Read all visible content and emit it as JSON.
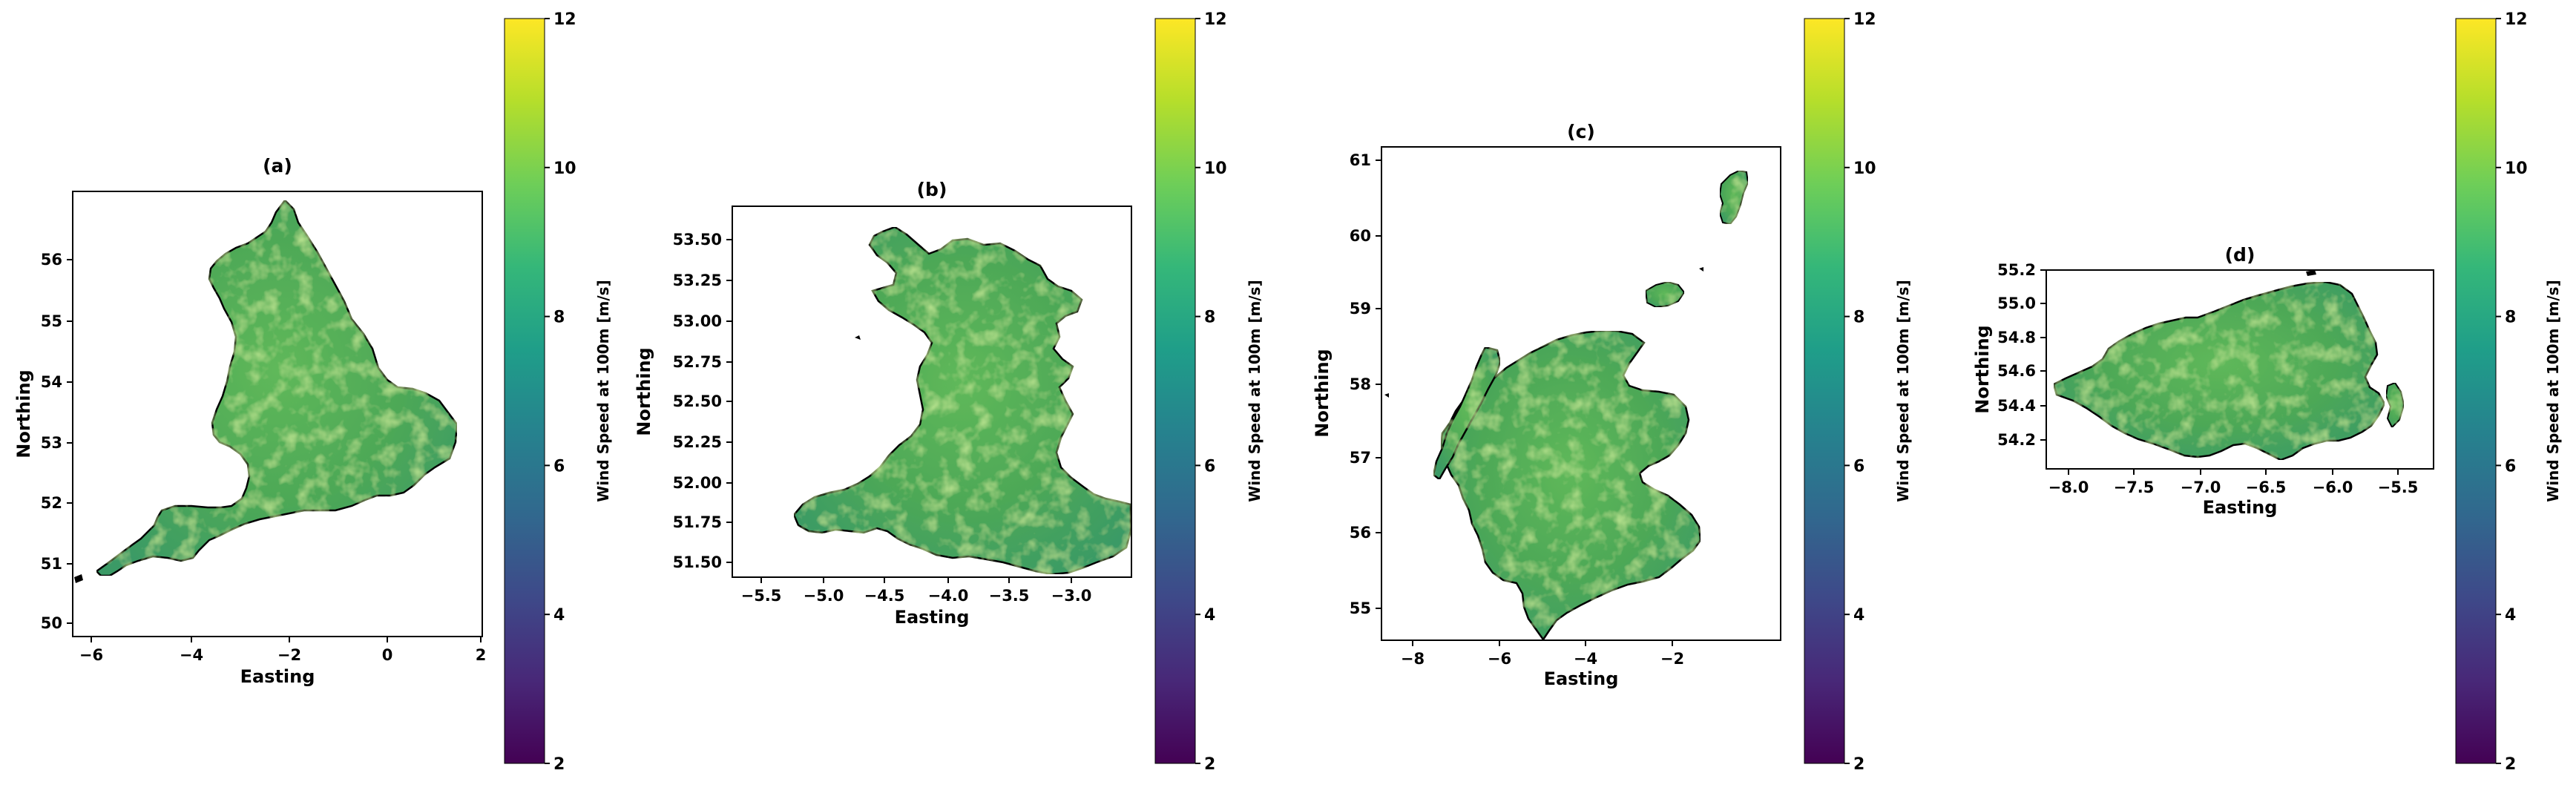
{
  "colormap": [
    "#440154",
    "#482878",
    "#3e4989",
    "#31688e",
    "#26828e",
    "#1f9e89",
    "#35b779",
    "#6ece58",
    "#b5de2b",
    "#fde725"
  ],
  "land_colors": {
    "base": "#4da857",
    "light": "#8ccf4f",
    "dark": "#2c8f73",
    "coast": "#000000"
  },
  "panels": [
    {
      "title": "(a)",
      "xlabel": "Easting",
      "ylabel": "Northing",
      "xticks": [
        "−6",
        "−4",
        "−2",
        "0",
        "2"
      ],
      "yticks": [
        "50",
        "51",
        "52",
        "53",
        "54",
        "55",
        "56"
      ],
      "colorbar": {
        "label": "Wind Speed at 100m [m/s]",
        "ticks": [
          "2",
          "4",
          "6",
          "8",
          "10",
          "12"
        ]
      }
    },
    {
      "title": "(b)",
      "xlabel": "Easting",
      "ylabel": "Northing",
      "xticks": [
        "−5.5",
        "−5.0",
        "−4.5",
        "−4.0",
        "−3.5",
        "−3.0"
      ],
      "yticks": [
        "51.50",
        "51.75",
        "52.00",
        "52.25",
        "52.50",
        "52.75",
        "53.00",
        "53.25",
        "53.50"
      ],
      "colorbar": {
        "label": "Wind Speed at 100m [m/s]",
        "ticks": [
          "2",
          "4",
          "6",
          "8",
          "10",
          "12"
        ]
      }
    },
    {
      "title": "(c)",
      "xlabel": "Easting",
      "ylabel": "Northing",
      "xticks": [
        "−8",
        "−6",
        "−4",
        "−2"
      ],
      "yticks": [
        "55",
        "56",
        "57",
        "58",
        "59",
        "60",
        "61"
      ],
      "colorbar": {
        "label": "Wind Speed at 100m [m/s]",
        "ticks": [
          "2",
          "4",
          "6",
          "8",
          "10",
          "12"
        ]
      }
    },
    {
      "title": "(d)",
      "xlabel": "Easting",
      "ylabel": "Northing",
      "xticks": [
        "−8.0",
        "−7.5",
        "−7.0",
        "−6.5",
        "−6.0",
        "−5.5"
      ],
      "yticks": [
        "54.2",
        "54.4",
        "54.6",
        "54.8",
        "55.0",
        "55.2"
      ],
      "colorbar": {
        "label": "Wind Speed at 100m [m/s]",
        "ticks": [
          "2",
          "4",
          "6",
          "8",
          "10",
          "12"
        ]
      }
    }
  ]
}
